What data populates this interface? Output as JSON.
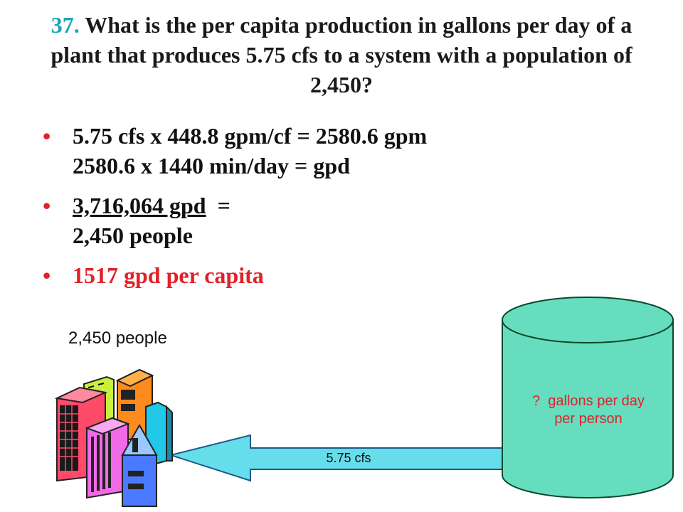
{
  "slide": {
    "title_number": "37.",
    "title_text": "What is the per capita production in gallons per day of a plant that produces 5.75 cfs to a system with a population of 2,450?",
    "bullets": [
      {
        "line1": "5.75 cfs x 448.8 gpm/cf = 2580.6 gpm",
        "line2": "2580.6 x 1440 min/day =  gpd"
      },
      {
        "line1_underlined": "3,716,064 gpd",
        "line1_rest": "  =",
        "line2": "2,450 people"
      },
      {
        "line1": "1517 gpd per capita"
      }
    ],
    "bullet_symbol": "•",
    "diagram": {
      "population_label": "2,450 people",
      "tank_label_line1": "?  gallons per day",
      "tank_label_line2": "per person",
      "flow_label": "5.75 cfs",
      "colors": {
        "tank_fill": "#66ddbf",
        "arrow_fill": "#66ddea",
        "highlight_red": "#e0222a",
        "title_number": "#1aa5b8"
      },
      "icon": "city-buildings-icon"
    }
  }
}
